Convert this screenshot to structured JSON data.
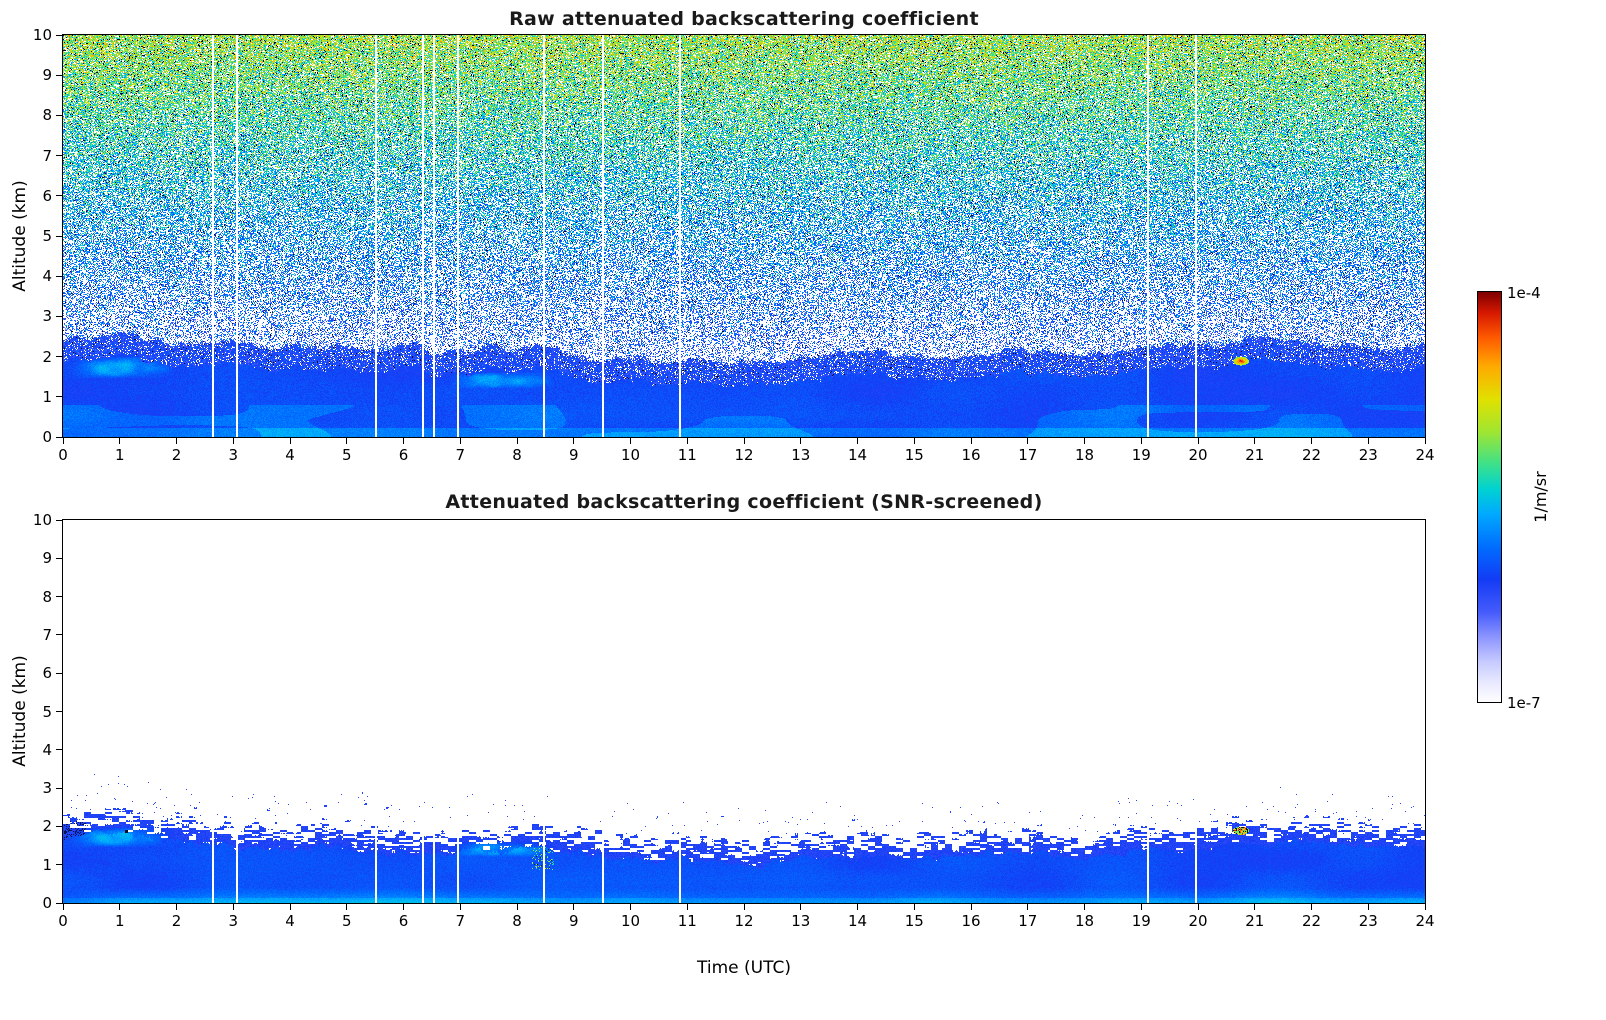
{
  "chart_data": {
    "type": "heatmap",
    "xlabel": "Time (UTC)",
    "ylabel": "Altitude (km)",
    "x_range": [
      0,
      24
    ],
    "y_range": [
      0,
      10
    ],
    "x_ticks": [
      0,
      1,
      2,
      3,
      4,
      5,
      6,
      7,
      8,
      9,
      10,
      11,
      12,
      13,
      14,
      15,
      16,
      17,
      18,
      19,
      20,
      21,
      22,
      23,
      24
    ],
    "y_ticks": [
      0,
      1,
      2,
      3,
      4,
      5,
      6,
      7,
      8,
      9,
      10
    ],
    "panels": [
      {
        "title": "Raw attenuated backscattering coefficient",
        "kind": "raw",
        "description": "Full-height speckle noise increasing in value with altitude over a solid blue boundary layer below about 2 km"
      },
      {
        "title": "Attenuated backscattering coefficient (SNR-screened)",
        "kind": "screened",
        "description": "Only the boundary layer signal below about 2 km remains; everything above is screened to white"
      }
    ],
    "colorbar": {
      "label": "1/m/sr",
      "top_label": "1e-4",
      "bottom_label": "1e-7",
      "scale": "log",
      "colormap": "jet-with-white-minimum",
      "stops": [
        [
          0.0,
          255,
          255,
          255
        ],
        [
          0.05,
          232,
          233,
          255
        ],
        [
          0.1,
          198,
          202,
          255
        ],
        [
          0.16,
          140,
          149,
          255
        ],
        [
          0.22,
          70,
          92,
          252
        ],
        [
          0.3,
          20,
          60,
          245
        ],
        [
          0.38,
          0,
          110,
          255
        ],
        [
          0.46,
          0,
          170,
          255
        ],
        [
          0.52,
          0,
          210,
          210
        ],
        [
          0.58,
          60,
          225,
          140
        ],
        [
          0.66,
          160,
          230,
          50
        ],
        [
          0.74,
          225,
          225,
          0
        ],
        [
          0.82,
          255,
          170,
          0
        ],
        [
          0.89,
          255,
          90,
          0
        ],
        [
          0.95,
          215,
          25,
          0
        ],
        [
          1.0,
          128,
          0,
          0
        ]
      ]
    },
    "boundary_layer_top_km": {
      "t": [
        0,
        0.5,
        1.0,
        1.5,
        2,
        2.5,
        3,
        4,
        5,
        6,
        7,
        8,
        8.6,
        9,
        10,
        10.8,
        11.5,
        12,
        13,
        14,
        15,
        16,
        17,
        18,
        19,
        20,
        20.5,
        21,
        21.5,
        22,
        23,
        24
      ],
      "z_km": [
        1.9,
        2.05,
        2.1,
        1.95,
        1.85,
        1.8,
        1.75,
        1.7,
        1.65,
        1.6,
        1.62,
        1.68,
        1.6,
        1.5,
        1.38,
        1.28,
        1.32,
        1.35,
        1.42,
        1.45,
        1.45,
        1.5,
        1.5,
        1.55,
        1.6,
        1.72,
        1.85,
        1.9,
        1.85,
        1.78,
        1.72,
        1.78
      ]
    },
    "gap_times_utc": [
      2.62,
      3.05,
      5.5,
      6.33,
      6.52,
      6.95,
      8.45,
      9.5,
      10.85,
      19.1,
      19.95
    ],
    "features": [
      {
        "name": "elevated-red-plume",
        "type": "spot",
        "t_center": 20.75,
        "z_center_km": 1.9,
        "t_halfwidth": 0.14,
        "z_halfwidth_km": 0.11
      },
      {
        "name": "cyan-streak-morning",
        "type": "streak",
        "t_range": [
          0.15,
          1.95
        ],
        "z_range": [
          1.45,
          2.0
        ]
      },
      {
        "name": "cyan-streak-forenoon",
        "type": "streak",
        "t_range": [
          6.8,
          8.65
        ],
        "z_range": [
          1.2,
          1.62
        ]
      },
      {
        "name": "green-specks",
        "type": "specks",
        "t_range": [
          8.25,
          8.65
        ],
        "z_range": [
          0.85,
          1.5
        ]
      },
      {
        "name": "dark-smudge-start",
        "type": "dark",
        "t_range": [
          0.0,
          0.4
        ],
        "z_range": [
          1.6,
          2.15
        ]
      }
    ],
    "isolated_specks": [
      [
        2.3,
        2.5
      ],
      [
        3.6,
        2.45
      ],
      [
        4.6,
        2.55
      ],
      [
        5.25,
        2.9
      ],
      [
        5.3,
        2.62
      ],
      [
        5.7,
        2.5
      ],
      [
        11.6,
        2.3
      ],
      [
        13.9,
        2.2
      ],
      [
        16.2,
        2.15
      ],
      [
        18.5,
        2.05
      ],
      [
        21.9,
        2.3
      ],
      [
        23.0,
        2.2
      ]
    ],
    "dark_specks": [
      [
        1.1,
        1.9
      ]
    ],
    "raw_noise": {
      "white_frac_ref": 0.62,
      "white_frac_ref_km": 2.5,
      "white_frac_slope_per_km": -0.062,
      "mean_v_base": 0.18,
      "mean_v_slope_per_km": 0.048,
      "spread": 0.12,
      "dark_speck_frac_at_top": 0.055,
      "fringe_band_km": 0.55,
      "layer_v": 0.295
    },
    "screened_noise": {
      "layer_v": 0.3,
      "ragged_band_km": 0.45,
      "speck_prob_above": 0.005
    }
  }
}
